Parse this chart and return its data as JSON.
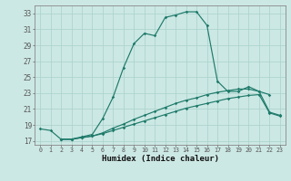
{
  "title": "",
  "xlabel": "Humidex (Indice chaleur)",
  "bg_color": "#cce8e4",
  "line_color": "#1e7a6a",
  "grid_color": "#aed4cf",
  "xlim": [
    -0.5,
    23.5
  ],
  "ylim": [
    16.5,
    34.0
  ],
  "yticks": [
    17,
    19,
    21,
    23,
    25,
    27,
    29,
    31,
    33
  ],
  "xticks": [
    0,
    1,
    2,
    3,
    4,
    5,
    6,
    7,
    8,
    9,
    10,
    11,
    12,
    13,
    14,
    15,
    16,
    17,
    18,
    19,
    20,
    21,
    22,
    23
  ],
  "curve1_x": [
    0,
    1,
    2,
    3,
    4,
    5,
    6,
    7,
    8,
    9,
    10,
    11,
    12,
    13,
    14,
    15,
    16,
    17,
    18,
    19,
    20,
    21,
    22
  ],
  "curve1_y": [
    18.5,
    18.3,
    17.2,
    17.2,
    17.5,
    17.8,
    19.8,
    22.5,
    26.2,
    29.2,
    30.5,
    30.2,
    32.5,
    32.8,
    33.2,
    33.2,
    31.5,
    24.5,
    23.2,
    23.2,
    23.8,
    23.2,
    22.8
  ],
  "curve2_x": [
    2,
    3,
    4,
    5,
    6,
    7,
    8,
    9,
    10,
    11,
    12,
    13,
    14,
    15,
    16,
    17,
    18,
    19,
    20,
    21,
    22,
    23
  ],
  "curve2_y": [
    17.2,
    17.2,
    17.4,
    17.6,
    17.9,
    18.3,
    18.7,
    19.1,
    19.5,
    19.9,
    20.3,
    20.7,
    21.1,
    21.4,
    21.7,
    22.0,
    22.3,
    22.5,
    22.7,
    22.8,
    20.5,
    20.1
  ],
  "curve3_x": [
    2,
    3,
    4,
    5,
    6,
    7,
    8,
    9,
    10,
    11,
    12,
    13,
    14,
    15,
    16,
    17,
    18,
    19,
    20,
    21,
    22,
    23
  ],
  "curve3_y": [
    17.2,
    17.2,
    17.4,
    17.6,
    18.0,
    18.6,
    19.1,
    19.7,
    20.2,
    20.7,
    21.2,
    21.7,
    22.1,
    22.4,
    22.8,
    23.1,
    23.3,
    23.5,
    23.5,
    23.2,
    20.6,
    20.2
  ]
}
